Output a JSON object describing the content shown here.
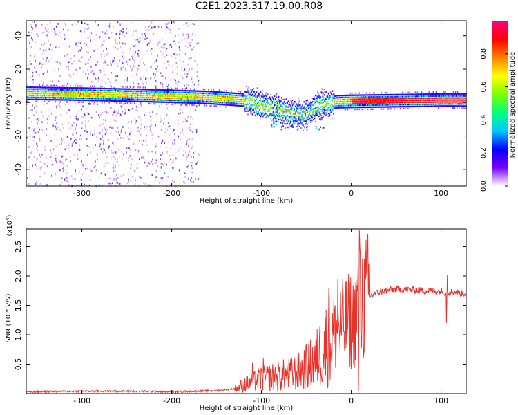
{
  "title": "C2E1.2023.317.19.00.R08",
  "colors": {
    "line": "#e8332c",
    "axis": "#000000",
    "colorbar_stops": [
      "#ffffff",
      "#7b00ff",
      "#0000ff",
      "#00c8ff",
      "#00ff7f",
      "#7fff00",
      "#ffff00",
      "#ff8000",
      "#ff0000",
      "#ff0080"
    ]
  },
  "chart_data": [
    {
      "type": "heatmap",
      "title": "",
      "xlabel": "Height of straight line (km)",
      "ylabel": "Frequency (Hz)",
      "xlim": [
        -362,
        128
      ],
      "ylim": [
        -50,
        49
      ],
      "xticks": [
        -300,
        -200,
        -100,
        0,
        100
      ],
      "xtick_labels": [
        "-300",
        "-200",
        "-100",
        "0",
        "100"
      ],
      "yticks": [
        -40,
        -20,
        0,
        20,
        40
      ],
      "ytick_labels": [
        "-40",
        "-20",
        "0",
        "20",
        "40"
      ],
      "colorbar": {
        "label": "Normalized spectral amplitude",
        "range": [
          0,
          1
        ],
        "ticks": [
          0,
          0.2,
          0.4,
          0.6,
          0.8
        ],
        "tick_labels": [
          "0.0",
          "0.2",
          "0.4",
          "0.6",
          "0.8"
        ]
      },
      "ridge": {
        "x": [
          -360,
          -300,
          -240,
          -200,
          -160,
          -120,
          -100,
          -80,
          -65,
          -55,
          -45,
          -30,
          -15,
          0,
          40,
          80,
          100,
          128
        ],
        "y": [
          6,
          5.5,
          4.8,
          4.2,
          3.5,
          2,
          -1,
          -4,
          -6,
          -7,
          -4,
          0,
          1,
          1.2,
          1.5,
          1.8,
          2,
          2
        ]
      },
      "noise_band_x": [
        -362,
        -170
      ],
      "grid": false
    },
    {
      "type": "line",
      "title": "",
      "xlabel": "Height of straight line (km)",
      "ylabel": "SNR (10 * v/v)",
      "y_multiplier": "(x10",
      "y_multiplier_exp": "4",
      "y_multiplier_close": ")",
      "xlim": [
        -362,
        128
      ],
      "ylim": [
        0,
        2.8
      ],
      "xticks": [
        -300,
        -200,
        -100,
        0,
        100
      ],
      "xtick_labels": [
        "-300",
        "-200",
        "-100",
        "0",
        "100"
      ],
      "yticks": [
        0.5,
        1.0,
        1.5,
        2.0,
        2.5
      ],
      "ytick_labels": [
        "0.5",
        "1.0",
        "1.5",
        "2.0",
        "2.5"
      ],
      "series": [
        {
          "x": [
            -362,
            -300,
            -250,
            -200,
            -150,
            -130,
            -120,
            -100,
            -80,
            -60,
            -40,
            -30,
            -20,
            -10,
            0,
            8,
            10,
            20,
            30,
            40,
            50,
            60,
            80,
            100,
            105,
            115,
            128
          ],
          "y": [
            0.03,
            0.04,
            0.04,
            0.03,
            0.05,
            0.08,
            0.15,
            0.25,
            0.3,
            0.35,
            0.55,
            0.8,
            1.0,
            1.15,
            1.25,
            1.5,
            1.55,
            1.65,
            1.72,
            1.75,
            1.78,
            1.77,
            1.75,
            1.74,
            1.72,
            1.73,
            1.7
          ]
        }
      ],
      "spikes": [
        {
          "x": 9,
          "y": 2.78
        },
        {
          "x": 8,
          "y": 0.05
        },
        {
          "x": -25,
          "y": 1.8
        },
        {
          "x": -15,
          "y": 1.95
        },
        {
          "x": 107,
          "y": 2.02
        },
        {
          "x": 106,
          "y": 1.2
        },
        {
          "x": -98,
          "y": 0.6
        },
        {
          "x": -110,
          "y": 0.52
        }
      ],
      "grid": false
    }
  ]
}
